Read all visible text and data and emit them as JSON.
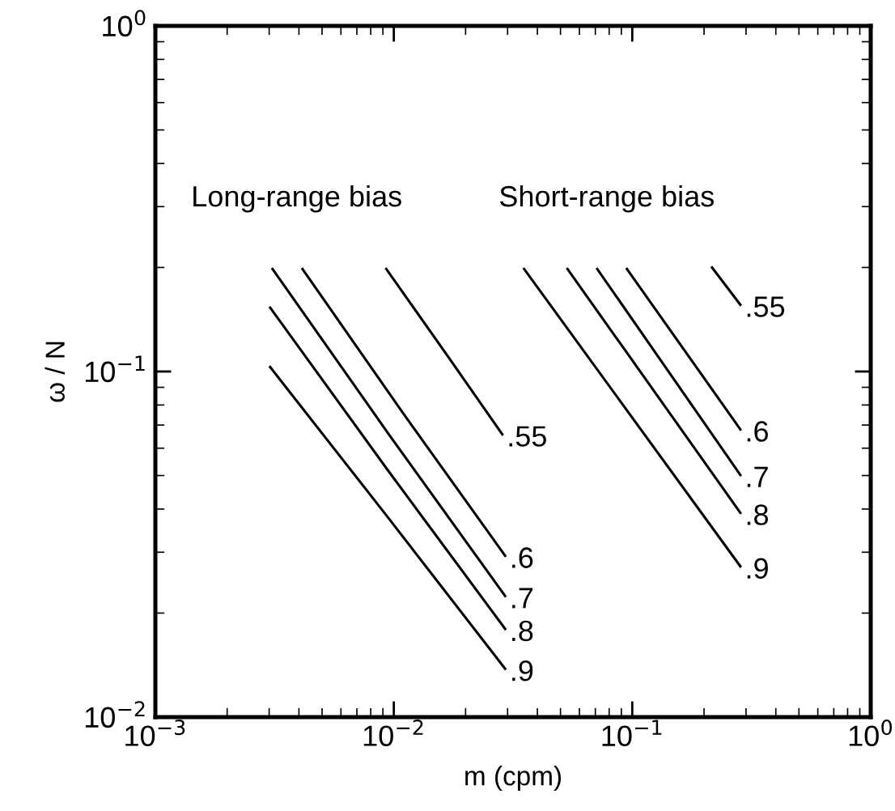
{
  "chart_data": {
    "type": "line",
    "xlabel": "m (cpm)",
    "ylabel": "ω / N",
    "log": "xy",
    "grid": false,
    "legend": false,
    "marker": "none",
    "line_style": "solid",
    "xlim": [
      0.001,
      1
    ],
    "ylim": [
      0.01,
      1
    ],
    "xticks": [
      {
        "value": 0.001,
        "label": "10$^{−3}$"
      },
      {
        "value": 0.01,
        "label": "10$^{−2}$"
      },
      {
        "value": 0.1,
        "label": "10$^{−1}$"
      },
      {
        "value": 1,
        "label": "10$^{0}$"
      }
    ],
    "yticks": [
      {
        "value": 0.01,
        "label": "10$^{−2}$"
      },
      {
        "value": 0.1,
        "label": "10$^{−1}$"
      },
      {
        "value": 1,
        "label": "10$^{0}$"
      }
    ],
    "series": [
      {
        "color": "#000000",
        "x": [
          0.0093,
          0.0165,
          0.0285
        ],
        "values": [
          0.198,
          0.113,
          0.0658
        ]
      },
      {
        "color": "#000000",
        "x": [
          0.00414,
          0.0109,
          0.0293
        ],
        "values": [
          0.198,
          0.076,
          0.0293
        ]
      },
      {
        "color": "#000000",
        "x": [
          0.0031,
          0.0095,
          0.0293
        ],
        "values": [
          0.198,
          0.066,
          0.0224
        ]
      },
      {
        "color": "#000000",
        "x": [
          0.00303,
          0.0094,
          0.0293
        ],
        "values": [
          0.153,
          0.052,
          0.018
        ]
      },
      {
        "color": "#000000",
        "x": [
          0.00303,
          0.0094,
          0.0293
        ],
        "values": [
          0.103,
          0.038,
          0.0138
        ]
      },
      {
        "color": "#000000",
        "x": [
          0.216,
          0.284
        ],
        "values": [
          0.2,
          0.156
        ]
      },
      {
        "color": "#000000",
        "x": [
          0.095,
          0.284
        ],
        "values": [
          0.198,
          0.068
        ]
      },
      {
        "color": "#000000",
        "x": [
          0.0713,
          0.284
        ],
        "values": [
          0.198,
          0.0502
        ]
      },
      {
        "color": "#000000",
        "x": [
          0.0535,
          0.284
        ],
        "values": [
          0.198,
          0.039
        ]
      },
      {
        "color": "#000000",
        "x": [
          0.0352,
          0.284
        ],
        "values": [
          0.198,
          0.0273
        ]
      }
    ],
    "annotations": [
      "Long-range bias",
      "Short-range bias",
      {
        "text": ".55",
        "x": 0.0285,
        "y": 0.0658
      },
      {
        "text": ".6",
        "x": 0.0293,
        "y": 0.0293
      },
      {
        "text": ".7",
        "x": 0.0293,
        "y": 0.0224
      },
      {
        "text": ".8",
        "x": 0.0293,
        "y": 0.018
      },
      {
        "text": ".9",
        "x": 0.0293,
        "y": 0.0138
      },
      {
        "text": ".55",
        "x": 0.284,
        "y": 0.156
      },
      {
        "text": ".6",
        "x": 0.284,
        "y": 0.068
      },
      {
        "text": ".7",
        "x": 0.284,
        "y": 0.0502
      },
      {
        "text": ".8",
        "x": 0.284,
        "y": 0.039
      },
      {
        "text": ".9",
        "x": 0.284,
        "y": 0.0273
      }
    ]
  }
}
